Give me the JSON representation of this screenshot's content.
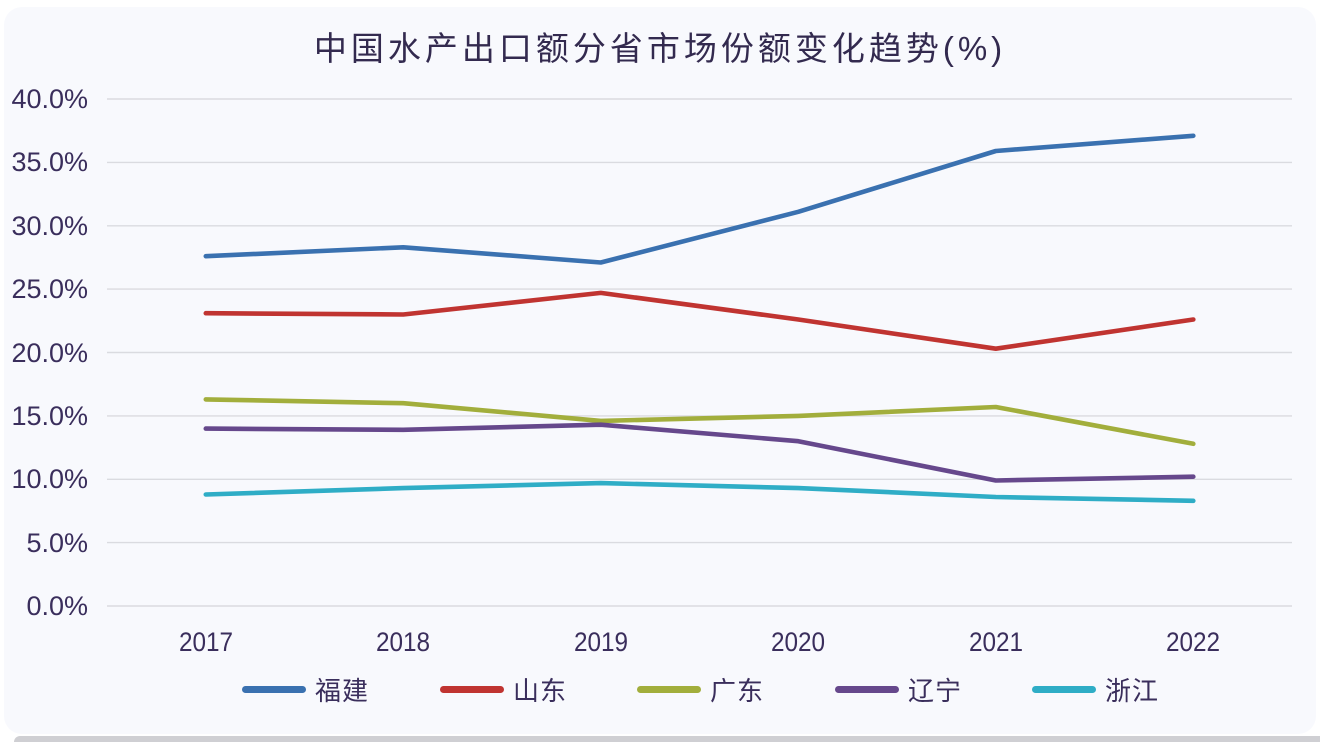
{
  "page": {
    "background": "#ffffff",
    "card_background": "#f8f9fd",
    "bottom_strip_color": "#cfcfd3"
  },
  "chart_data": {
    "type": "line",
    "title": "中国水产出口额分省市场份额变化趋势(%)",
    "categories": [
      "2017",
      "2018",
      "2019",
      "2020",
      "2021",
      "2022"
    ],
    "series": [
      {
        "name": "福建",
        "color": "#3a71b0",
        "values": [
          27.6,
          28.3,
          27.1,
          31.1,
          35.9,
          37.1
        ]
      },
      {
        "name": "山东",
        "color": "#c03431",
        "values": [
          23.1,
          23.0,
          24.7,
          22.6,
          20.3,
          22.6
        ]
      },
      {
        "name": "广东",
        "color": "#a2ae3c",
        "values": [
          16.3,
          16.0,
          14.6,
          15.0,
          15.7,
          12.8
        ]
      },
      {
        "name": "辽宁",
        "color": "#66488c",
        "values": [
          14.0,
          13.9,
          14.3,
          13.0,
          9.9,
          10.2
        ]
      },
      {
        "name": "浙江",
        "color": "#2fadc6",
        "values": [
          8.8,
          9.3,
          9.7,
          9.3,
          8.6,
          8.3
        ]
      }
    ],
    "ylim": [
      0,
      40
    ],
    "ytick_step": 5,
    "ytick_labels": [
      "40.0%",
      "35.0%",
      "30.0%",
      "25.0%",
      "20.0%",
      "15.0%",
      "10.0%",
      "5.0%",
      "0.0%"
    ],
    "grid": true,
    "legend_position": "bottom",
    "text_color": "#3a2e5c",
    "gridline_color": "#dadbe0"
  }
}
